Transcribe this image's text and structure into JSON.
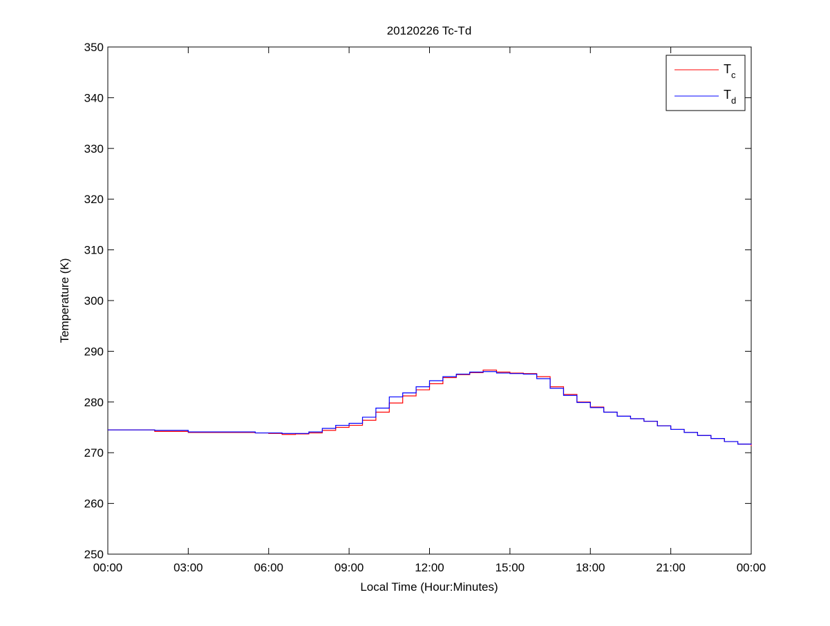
{
  "chart_data": {
    "type": "line",
    "title": "20120226 Tc-Td",
    "xlabel": "Local Time (Hour:Minutes)",
    "ylabel": "Temperature (K)",
    "xlim": [
      "00:00",
      "24:00"
    ],
    "ylim": [
      250,
      350
    ],
    "xticks": [
      "00:00",
      "03:00",
      "06:00",
      "09:00",
      "12:00",
      "15:00",
      "18:00",
      "21:00",
      "00:00"
    ],
    "yticks": [
      250,
      260,
      270,
      280,
      290,
      300,
      310,
      320,
      330,
      340,
      350
    ],
    "grid": false,
    "legend_position": "top-right",
    "x": [
      "00:00",
      "01:30",
      "01:45",
      "03:00",
      "05:30",
      "06:00",
      "06:30",
      "07:00",
      "07:30",
      "08:00",
      "08:30",
      "09:00",
      "09:30",
      "10:00",
      "10:30",
      "11:00",
      "11:30",
      "12:00",
      "12:30",
      "13:00",
      "13:30",
      "14:00",
      "14:30",
      "15:00",
      "15:30",
      "16:00",
      "16:30",
      "17:00",
      "17:30",
      "18:00",
      "18:30",
      "19:00",
      "19:30",
      "20:00",
      "20:30",
      "21:00",
      "21:30",
      "22:00",
      "22:30",
      "23:00",
      "23:30",
      "24:00"
    ],
    "series": [
      {
        "name": "T",
        "subscript": "c",
        "color": "#ff0000",
        "values": [
          274.5,
          274.5,
          274.2,
          274.0,
          273.9,
          273.8,
          273.6,
          273.7,
          273.9,
          274.4,
          275.0,
          275.4,
          276.4,
          278.0,
          279.8,
          281.2,
          282.4,
          283.6,
          284.8,
          285.4,
          285.8,
          286.3,
          285.9,
          285.7,
          285.6,
          285.0,
          283.0,
          281.5,
          280.0,
          279.0,
          278.0,
          277.2,
          276.7,
          276.2,
          275.3,
          274.6,
          274.0,
          273.4,
          272.8,
          272.2,
          271.7,
          271.3
        ]
      },
      {
        "name": "T",
        "subscript": "d",
        "color": "#0000ff",
        "values": [
          274.5,
          274.5,
          274.4,
          274.1,
          273.9,
          273.9,
          273.8,
          273.8,
          274.1,
          274.8,
          275.4,
          275.8,
          277.0,
          278.8,
          281.0,
          281.8,
          283.0,
          284.2,
          285.0,
          285.5,
          285.9,
          286.0,
          285.7,
          285.6,
          285.5,
          284.6,
          282.7,
          281.3,
          279.9,
          278.9,
          278.0,
          277.2,
          276.7,
          276.2,
          275.3,
          274.6,
          274.0,
          273.4,
          272.8,
          272.2,
          271.7,
          271.6
        ]
      }
    ]
  }
}
